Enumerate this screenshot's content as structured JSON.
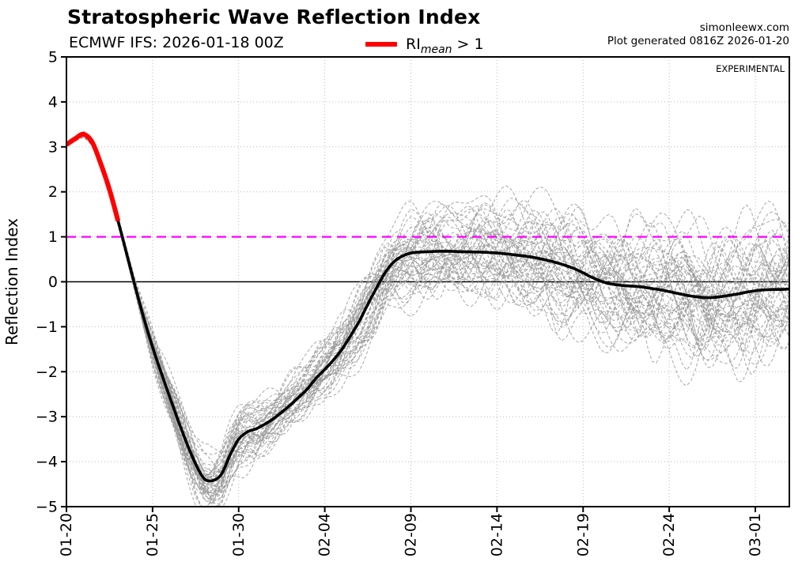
{
  "header": {
    "title": "Stratospheric Wave Reflection Index",
    "subtitle": "ECMWF IFS: 2026-01-18 00Z",
    "site": "simonleewx.com",
    "generated": "Plot generated 0816Z 2026-01-20"
  },
  "legend": {
    "prefix": "RI",
    "subscript": "mean",
    "suffix": " > 1",
    "line_color": "#ff0000"
  },
  "plot": {
    "experimental": "EXPERIMENTAL"
  },
  "chart_data": {
    "type": "line",
    "title": "Stratospheric Wave Reflection Index",
    "subtitle": "ECMWF IFS: 2026-01-18 00Z",
    "xlabel": "",
    "ylabel": "Reflection Index",
    "ylim": [
      -5,
      5
    ],
    "yticks": [
      5,
      4,
      3,
      2,
      1,
      0,
      -1,
      -2,
      -3,
      -4,
      -5
    ],
    "ytick_labels": [
      "5",
      "4",
      "3",
      "2",
      "1",
      "0",
      "−1",
      "−2",
      "−3",
      "−4",
      "−5"
    ],
    "xtick_labels": [
      "01-20",
      "01-25",
      "01-30",
      "02-04",
      "02-09",
      "02-14",
      "02-19",
      "02-24",
      "03-01"
    ],
    "xtick_days": [
      0,
      5,
      10,
      15,
      20,
      25,
      30,
      35,
      40
    ],
    "xlim_days": [
      0,
      42
    ],
    "grid": true,
    "grid_color": "#bbbbbb",
    "zero_line": {
      "y": 0,
      "color": "#000000",
      "style": "solid"
    },
    "threshold_line": {
      "y": 1,
      "color": "#ff00ff",
      "style": "dashed",
      "meaning": "RI = 1 threshold"
    },
    "series": [
      {
        "name": "ensemble mean",
        "color": "#000000",
        "style": "solid",
        "x": [
          0,
          0.5,
          1,
          1.5,
          2,
          2.5,
          3,
          3.5,
          4,
          4.5,
          5,
          5.5,
          6,
          6.5,
          7,
          7.5,
          8,
          8.5,
          9,
          9.5,
          10,
          10.5,
          11,
          11.5,
          12,
          12.5,
          13,
          13.5,
          14,
          14.5,
          15,
          15.5,
          16,
          16.5,
          17,
          17.5,
          18,
          18.5,
          19,
          19.5,
          20,
          20.5,
          21,
          22,
          23,
          24,
          25,
          26,
          27,
          28,
          28.5,
          29,
          29.5,
          30,
          30.5,
          31,
          31.5,
          32,
          32.5,
          33,
          33.5,
          34,
          34.5,
          35,
          35.5,
          36,
          36.5,
          37,
          37.5,
          38,
          38.5,
          39,
          39.5,
          40,
          40.5,
          41,
          41.5,
          42
        ],
        "values": [
          3.05,
          3.18,
          3.28,
          3.1,
          2.62,
          2.05,
          1.35,
          0.62,
          -0.12,
          -0.82,
          -1.45,
          -2.02,
          -2.56,
          -3.1,
          -3.6,
          -4.05,
          -4.38,
          -4.42,
          -4.28,
          -3.85,
          -3.5,
          -3.34,
          -3.27,
          -3.17,
          -3.05,
          -2.9,
          -2.74,
          -2.56,
          -2.38,
          -2.14,
          -1.95,
          -1.74,
          -1.5,
          -1.2,
          -0.88,
          -0.5,
          -0.14,
          0.2,
          0.44,
          0.57,
          0.64,
          0.66,
          0.67,
          0.68,
          0.67,
          0.66,
          0.64,
          0.6,
          0.55,
          0.47,
          0.42,
          0.36,
          0.29,
          0.2,
          0.1,
          0.02,
          -0.04,
          -0.07,
          -0.09,
          -0.1,
          -0.12,
          -0.15,
          -0.18,
          -0.22,
          -0.26,
          -0.3,
          -0.33,
          -0.35,
          -0.35,
          -0.33,
          -0.3,
          -0.27,
          -0.23,
          -0.2,
          -0.18,
          -0.17,
          -0.17,
          -0.16
        ]
      },
      {
        "name": "mean where RI > 1 (highlight)",
        "color": "#ff0000",
        "style": "solid",
        "x_end_day": 3,
        "note": "red overlay on mean from 01-20 to ~01-23 where ensemble-mean RI exceeds 1"
      }
    ],
    "ensemble": {
      "count": 50,
      "color": "#999999",
      "style": "dashed",
      "description": "individual ensemble members, dashed gray, diverging from the mean with lead time",
      "spread_by_day": [
        [
          0,
          0.03
        ],
        [
          1,
          0.05
        ],
        [
          2,
          0.07
        ],
        [
          3,
          0.07
        ],
        [
          4,
          0.12
        ],
        [
          5,
          0.28
        ],
        [
          6,
          0.38
        ],
        [
          7,
          0.46
        ],
        [
          8,
          0.52
        ],
        [
          9,
          0.55
        ],
        [
          10,
          0.52
        ],
        [
          12,
          0.48
        ],
        [
          14,
          0.5
        ],
        [
          16,
          0.56
        ],
        [
          18,
          0.66
        ],
        [
          20,
          0.76
        ],
        [
          22,
          0.8
        ],
        [
          24,
          0.85
        ],
        [
          26,
          0.9
        ],
        [
          28,
          0.95
        ],
        [
          30,
          1.0
        ],
        [
          32,
          1.05
        ],
        [
          34,
          1.1
        ],
        [
          36,
          1.15
        ],
        [
          42,
          1.15
        ]
      ]
    }
  }
}
